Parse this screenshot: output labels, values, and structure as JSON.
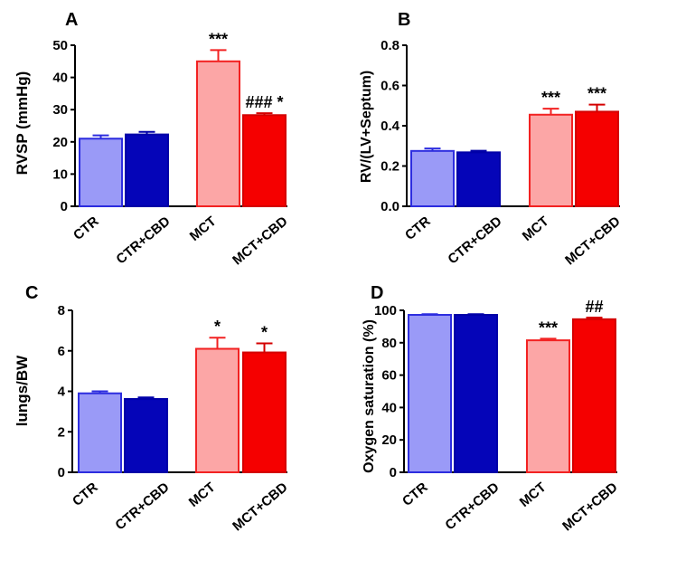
{
  "colors": {
    "CTR": {
      "fill": "#9a9af7",
      "stroke": "#2d2ddf"
    },
    "CTR+CBD": {
      "fill": "#0505b8",
      "stroke": "#0000a8"
    },
    "MCT": {
      "fill": "#fca6a6",
      "stroke": "#f22222"
    },
    "MCT+CBD": {
      "fill": "#f50000",
      "stroke": "#d40000"
    },
    "axis": "#000000"
  },
  "chart_data": [
    {
      "panel": "A",
      "type": "bar",
      "ylabel": "RVSP (mmHg)",
      "ylim": [
        0,
        50
      ],
      "yticks": [
        "0",
        "10",
        "20",
        "30",
        "40",
        "50"
      ],
      "categories": [
        "CTR",
        "CTR+CBD",
        "MCT",
        "MCT+CBD"
      ],
      "values": [
        21,
        22.3,
        45,
        28.3
      ],
      "errors": [
        1.0,
        0.8,
        3.5,
        0.6
      ],
      "annotations": [
        "",
        "",
        "***",
        "### *"
      ]
    },
    {
      "panel": "B",
      "type": "bar",
      "ylabel": "RV/(LV+Septum)",
      "ylim": [
        0,
        0.8
      ],
      "yticks": [
        "0.0",
        "0.2",
        "0.4",
        "0.6",
        "0.8"
      ],
      "categories": [
        "CTR",
        "CTR+CBD",
        "MCT",
        "MCT+CBD"
      ],
      "values": [
        0.275,
        0.268,
        0.455,
        0.47
      ],
      "errors": [
        0.012,
        0.008,
        0.03,
        0.035
      ],
      "annotations": [
        "",
        "",
        "***",
        "***"
      ]
    },
    {
      "panel": "C",
      "type": "bar",
      "ylabel": "lungs/BW",
      "ylim": [
        0,
        8
      ],
      "yticks": [
        "0",
        "2",
        "4",
        "6",
        "8"
      ],
      "categories": [
        "CTR",
        "CTR+CBD",
        "MCT",
        "MCT+CBD"
      ],
      "values": [
        3.9,
        3.62,
        6.1,
        5.92
      ],
      "errors": [
        0.1,
        0.08,
        0.55,
        0.45
      ],
      "annotations": [
        "",
        "",
        "*",
        "*"
      ]
    },
    {
      "panel": "D",
      "type": "bar",
      "ylabel": "Oxygen saturation (%)",
      "ylim": [
        0,
        100
      ],
      "yticks": [
        "0",
        "20",
        "40",
        "60",
        "80",
        "100"
      ],
      "categories": [
        "CTR",
        "CTR+CBD",
        "MCT",
        "MCT+CBD"
      ],
      "values": [
        97.2,
        97.2,
        81.5,
        94.5
      ],
      "errors": [
        0.4,
        0.4,
        1.0,
        1.0
      ],
      "annotations": [
        "",
        "",
        "***",
        "##"
      ]
    }
  ]
}
